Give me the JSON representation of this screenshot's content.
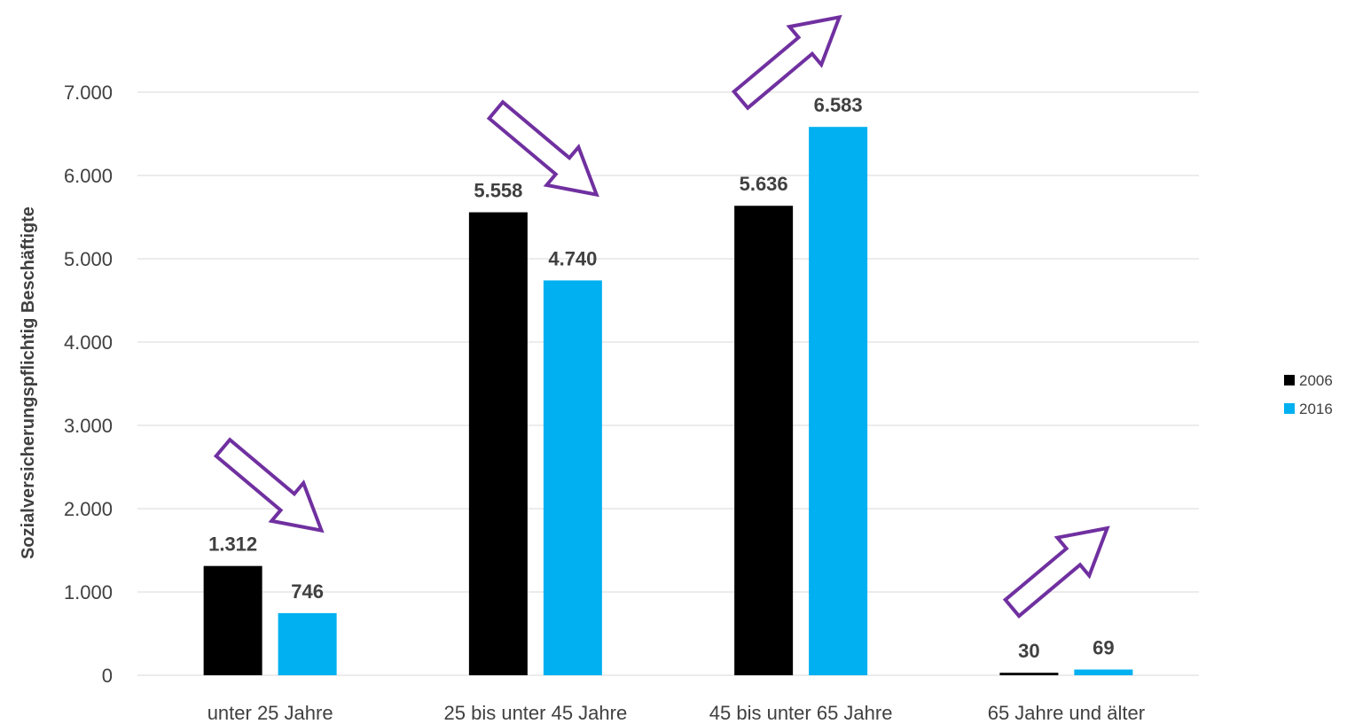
{
  "chart_data": {
    "type": "bar",
    "title": "",
    "xlabel": "",
    "ylabel": "Sozialversicherungspflichtig Beschäftigte",
    "categories": [
      "unter 25 Jahre",
      "25 bis unter 45 Jahre",
      "45 bis unter 65 Jahre",
      "65 Jahre und älter"
    ],
    "series": [
      {
        "name": "2006",
        "color": "#000000",
        "values": [
          1312,
          5558,
          5636,
          30
        ],
        "labels": [
          "1.312",
          "5.558",
          "5.636",
          "30"
        ]
      },
      {
        "name": "2016",
        "color": "#00b0f0",
        "values": [
          746,
          4740,
          6583,
          69
        ],
        "labels": [
          "746",
          "4.740",
          "6.583",
          "69"
        ]
      }
    ],
    "ylim": [
      0,
      7000
    ],
    "yticks": [
      0,
      1000,
      2000,
      3000,
      4000,
      5000,
      6000,
      7000
    ],
    "ytick_labels": [
      "0",
      "1.000",
      "2.000",
      "3.000",
      "4.000",
      "5.000",
      "6.000",
      "7.000"
    ],
    "grid": true,
    "legend_position": "right",
    "annotations": {
      "arrow_color": "#7030a0",
      "trend_arrows": [
        "down",
        "down",
        "up",
        "up"
      ]
    }
  }
}
